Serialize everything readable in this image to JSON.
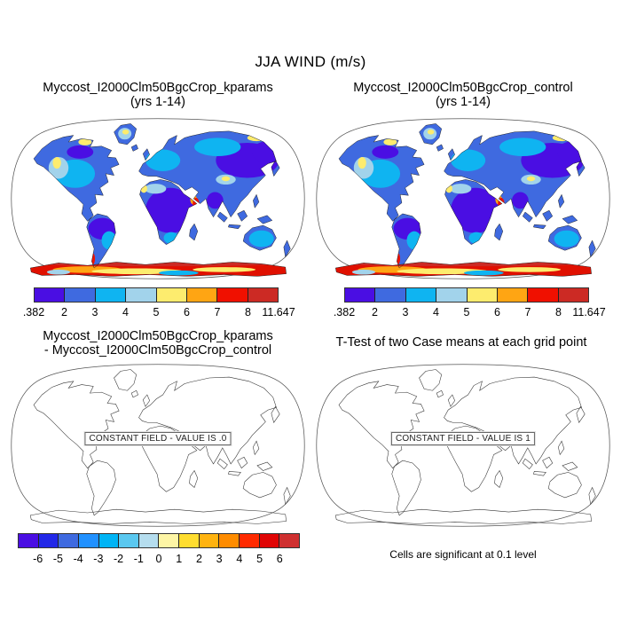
{
  "figure": {
    "title": "JJA WIND (m/s)"
  },
  "chart_data": [
    {
      "type": "heatmap",
      "panel": "top-left",
      "title": "Myccost_I2000Clm50BgcCrop_kparams",
      "subtitle": "(yrs 1-14)",
      "variable": "JJA WIND",
      "units": "m/s",
      "projection": "Robinson",
      "land_only": true,
      "value_range": [
        0.382,
        11.647
      ],
      "colorbar": {
        "tick_labels": [
          ".382",
          "2",
          "3",
          "4",
          "5",
          "6",
          "7",
          "8",
          "11.647"
        ],
        "colors": [
          "#4a0ee3",
          "#3f6ae0",
          "#0fb4f1",
          "#a2d3eb",
          "#fdec6e",
          "#ffa513",
          "#f01000",
          "#cc2a24"
        ]
      }
    },
    {
      "type": "heatmap",
      "panel": "top-right",
      "title": "Myccost_I2000Clm50BgcCrop_control",
      "subtitle": "(yrs 1-14)",
      "variable": "JJA WIND",
      "units": "m/s",
      "projection": "Robinson",
      "land_only": true,
      "value_range": [
        0.382,
        11.647
      ],
      "colorbar": {
        "tick_labels": [
          ".382",
          "2",
          "3",
          "4",
          "5",
          "6",
          "7",
          "8",
          "11.647"
        ],
        "colors": [
          "#4a0ee3",
          "#3f6ae0",
          "#0fb4f1",
          "#a2d3eb",
          "#fdec6e",
          "#ffa513",
          "#f01000",
          "#cc2a24"
        ]
      }
    },
    {
      "type": "heatmap",
      "panel": "bottom-left",
      "title": "Myccost_I2000Clm50BgcCrop_kparams",
      "subtitle": "- Myccost_I2000Clm50BgcCrop_control",
      "variable": "JJA WIND difference",
      "units": "m/s",
      "projection": "Robinson",
      "constant_field_value": ".0",
      "overlay_label": "CONSTANT FIELD - VALUE IS .0",
      "colorbar": {
        "tick_labels": [
          "-6",
          "-5",
          "-4",
          "-3",
          "-2",
          "-1",
          "0",
          "1",
          "2",
          "3",
          "4",
          "5",
          "6"
        ],
        "colors": [
          "#4a0ee3",
          "#2228e8",
          "#3f6ae0",
          "#2191ff",
          "#00b4f5",
          "#5ac8f0",
          "#b5ddee",
          "#fdf5a5",
          "#ffdd30",
          "#ffb310",
          "#ff8c00",
          "#ff2a00",
          "#e00505",
          "#cf3030"
        ]
      }
    },
    {
      "type": "heatmap",
      "panel": "bottom-right",
      "title": "T-Test of two Case means at each grid point",
      "projection": "Robinson",
      "constant_field_value": "1",
      "overlay_label": "CONSTANT FIELD - VALUE IS 1",
      "note": "Cells are significant at 0.1 level"
    }
  ]
}
